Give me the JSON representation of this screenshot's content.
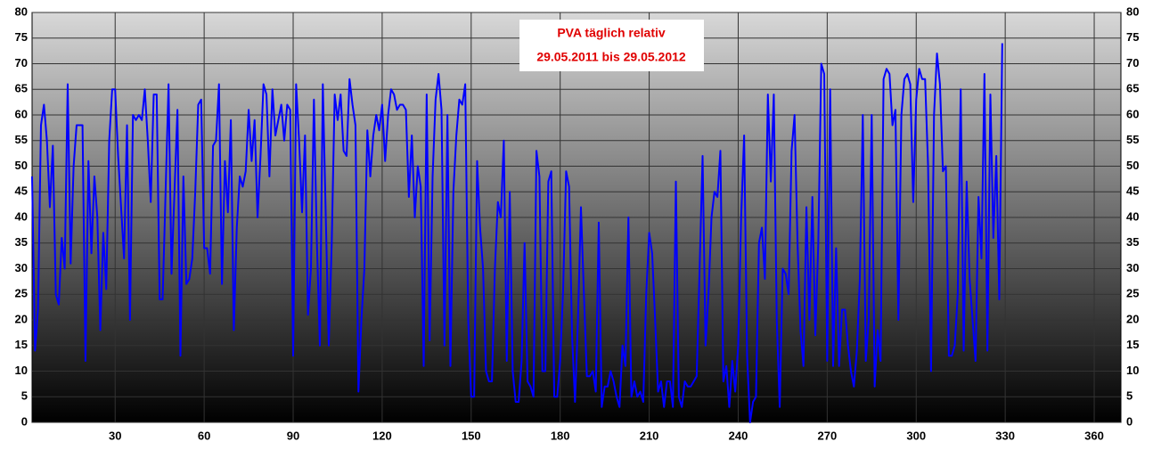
{
  "chart_data": {
    "type": "line",
    "title": "PVA täglich relativ",
    "subtitle": "29.05.2011 bis 29.05.2012",
    "x": [
      2,
      3,
      4,
      5,
      6,
      7,
      8,
      9,
      10,
      11,
      12,
      13,
      14,
      15,
      16,
      17,
      18,
      19,
      20,
      21,
      22,
      23,
      24,
      25,
      26,
      27,
      28,
      29,
      30,
      31,
      32,
      33,
      34,
      35,
      36,
      37,
      38,
      39,
      40,
      41,
      42,
      43,
      44,
      45,
      46,
      47,
      48,
      49,
      50,
      51,
      52,
      53,
      54,
      55,
      56,
      57,
      58,
      59,
      60,
      61,
      62,
      63,
      64,
      65,
      66,
      67,
      68,
      69,
      70,
      71,
      72,
      73,
      74,
      75,
      76,
      77,
      78,
      79,
      80,
      81,
      82,
      83,
      84,
      85,
      86,
      87,
      88,
      89,
      90,
      91,
      92,
      93,
      94,
      95,
      96,
      97,
      98,
      99,
      100,
      101,
      102,
      103,
      104,
      105,
      106,
      107,
      108,
      109,
      110,
      111,
      112,
      113,
      114,
      115,
      116,
      117,
      118,
      119,
      120,
      121,
      122,
      123,
      124,
      125,
      126,
      127,
      128,
      129,
      130,
      131,
      132,
      133,
      134,
      135,
      136,
      137,
      138,
      139,
      140,
      141,
      142,
      143,
      144,
      145,
      146,
      147,
      148,
      149,
      150,
      151,
      152,
      153,
      154,
      155,
      156,
      157,
      158,
      159,
      160,
      161,
      162,
      163,
      164,
      165,
      166,
      167,
      168,
      169,
      170,
      171,
      172,
      173,
      174,
      175,
      176,
      177,
      178,
      179,
      180,
      181,
      182,
      183,
      184,
      185,
      186,
      187,
      188,
      189,
      190,
      191,
      192,
      193,
      194,
      195,
      196,
      197,
      198,
      199,
      200,
      201,
      202,
      203,
      204,
      205,
      206,
      207,
      208,
      209,
      210,
      211,
      212,
      213,
      214,
      215,
      216,
      217,
      218,
      219,
      220,
      221,
      222,
      223,
      224,
      225,
      226,
      227,
      228,
      229,
      230,
      231,
      232,
      233,
      234,
      235,
      236,
      237,
      238,
      239,
      240,
      241,
      242,
      243,
      244,
      245,
      246,
      247,
      248,
      249,
      250,
      251,
      252,
      253,
      254,
      255,
      256,
      257,
      258,
      259,
      260,
      261,
      262,
      263,
      264,
      265,
      266,
      267,
      268,
      269,
      270,
      271,
      272,
      273,
      274,
      275,
      276,
      277,
      278,
      279,
      280,
      281,
      282,
      283,
      284,
      285,
      286,
      287,
      288,
      289,
      290,
      291,
      292,
      293,
      294,
      295,
      296,
      297,
      298,
      299,
      300,
      301,
      302,
      303,
      304,
      305,
      306,
      307,
      308,
      309,
      310,
      311,
      312,
      313,
      314,
      315,
      316,
      317,
      318,
      319,
      320,
      321,
      322,
      323,
      324,
      325,
      326,
      327,
      328,
      329
    ],
    "series": [
      {
        "name": "PVA",
        "color": "#0000ff",
        "values": [
          48,
          14,
          22,
          58,
          62,
          55,
          42,
          54,
          25,
          23,
          36,
          30,
          66,
          31,
          50,
          58,
          58,
          58,
          12,
          51,
          33,
          48,
          40,
          18,
          37,
          26,
          55,
          65,
          65,
          52,
          42,
          32,
          58,
          20,
          60,
          59,
          60,
          59,
          65,
          55,
          43,
          64,
          64,
          24,
          24,
          45,
          66,
          29,
          45,
          61,
          13,
          48,
          27,
          28,
          32,
          45,
          62,
          63,
          34,
          34,
          29,
          54,
          55,
          66,
          27,
          51,
          41,
          59,
          18,
          38,
          48,
          46,
          49,
          61,
          51,
          59,
          40,
          52,
          66,
          64,
          48,
          65,
          56,
          59,
          62,
          55,
          62,
          61,
          13,
          66,
          55,
          41,
          56,
          21,
          30,
          63,
          35,
          15,
          66,
          40,
          15,
          35,
          64,
          59,
          64,
          53,
          52,
          67,
          62,
          58,
          6,
          20,
          30,
          57,
          48,
          56,
          60,
          57,
          62,
          51,
          60,
          65,
          64,
          61,
          62,
          62,
          61,
          44,
          56,
          40,
          50,
          46,
          11,
          64,
          16,
          48,
          63,
          68,
          61,
          15,
          60,
          11,
          45,
          56,
          63,
          62,
          66,
          20,
          5,
          5,
          51,
          38,
          30,
          10,
          8,
          8,
          30,
          43,
          40,
          55,
          12,
          45,
          10,
          4,
          4,
          12,
          35,
          8,
          7,
          5,
          53,
          48,
          10,
          10,
          47,
          49,
          5,
          5,
          12,
          26,
          49,
          46,
          17,
          4,
          20,
          42,
          25,
          9,
          9,
          10,
          6,
          39,
          3,
          7,
          7,
          10,
          8,
          5,
          3,
          15,
          11,
          40,
          5,
          8,
          5,
          6,
          4,
          25,
          37,
          33,
          20,
          6,
          8,
          3,
          8,
          8,
          3,
          47,
          5,
          3,
          8,
          7,
          7,
          8,
          9,
          30,
          52,
          15,
          25,
          40,
          45,
          44,
          53,
          8,
          11,
          3,
          12,
          6,
          15,
          40,
          56,
          13,
          0,
          4,
          5,
          35,
          38,
          28,
          64,
          47,
          64,
          20,
          3,
          30,
          29,
          25,
          53,
          60,
          35,
          18,
          11,
          42,
          20,
          44,
          17,
          35,
          70,
          68,
          12,
          65,
          11,
          34,
          11,
          22,
          22,
          15,
          10,
          7,
          14,
          28,
          60,
          12,
          20,
          60,
          7,
          18,
          12,
          67,
          69,
          68,
          58,
          61,
          20,
          60,
          67,
          68,
          66,
          43,
          63,
          69,
          67,
          67,
          50,
          10,
          60,
          72,
          66,
          49,
          50,
          13,
          13,
          15,
          25,
          65,
          14,
          47,
          28,
          20,
          12,
          44,
          32,
          68,
          14,
          64,
          36,
          52,
          24,
          74
        ]
      }
    ],
    "xlim": [
      2,
      369
    ],
    "xticks": [
      30,
      60,
      90,
      120,
      150,
      180,
      210,
      240,
      270,
      300,
      330,
      360
    ],
    "ylim": [
      0,
      80
    ],
    "yticks": [
      0,
      5,
      10,
      15,
      20,
      25,
      30,
      35,
      40,
      45,
      50,
      55,
      60,
      65,
      70,
      75,
      80
    ],
    "grid": true
  }
}
